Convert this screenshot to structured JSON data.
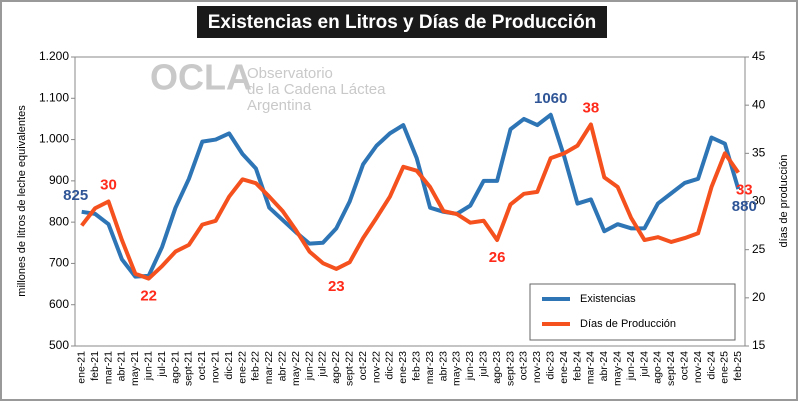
{
  "chart_data": {
    "type": "line",
    "title": "Existencias en Litros y Días de Producción",
    "ylabel": "millones de litros de leche equivalentes",
    "y2label": "días de producción",
    "watermark": [
      "OCLA",
      "Observatorio",
      "de la Cadena Láctea",
      "Argentina"
    ],
    "categories": [
      "ene-21",
      "feb-21",
      "mar-21",
      "abr-21",
      "may-21",
      "jun-21",
      "jul-21",
      "ago-21",
      "sept-21",
      "oct-21",
      "nov-21",
      "dic-21",
      "ene-22",
      "feb-22",
      "mar-22",
      "abr-22",
      "may-22",
      "jun-22",
      "jul-22",
      "ago-22",
      "sept-22",
      "oct-22",
      "nov-22",
      "dic-22",
      "ene-23",
      "feb-23",
      "mar-23",
      "abr-23",
      "may-23",
      "jun-23",
      "jul-23",
      "ago-23",
      "sept-23",
      "oct-23",
      "nov-23",
      "dic-23",
      "ene-24",
      "feb-24",
      "mar-24",
      "abr-24",
      "may-24",
      "jun-24",
      "jul-24",
      "ago-24",
      "sept-24",
      "oct-24",
      "nov-24",
      "dic-24",
      "ene-25",
      "feb-25"
    ],
    "series": [
      {
        "name": "Existencias",
        "color": "#2e75b6",
        "label_color": "#2f5597",
        "values": [
          825,
          820,
          795,
          710,
          668,
          670,
          740,
          835,
          905,
          995,
          1000,
          1015,
          965,
          930,
          835,
          805,
          775,
          748,
          750,
          785,
          850,
          940,
          985,
          1015,
          1035,
          955,
          835,
          825,
          820,
          840,
          900,
          900,
          1025,
          1050,
          1035,
          1060,
          960,
          845,
          855,
          778,
          795,
          785,
          785,
          845,
          870,
          895,
          905,
          1005,
          990,
          880
        ],
        "value_labels": [
          "825",
          null,
          null,
          null,
          null,
          null,
          null,
          null,
          null,
          null,
          null,
          null,
          null,
          null,
          null,
          null,
          null,
          null,
          null,
          null,
          null,
          null,
          null,
          null,
          null,
          null,
          null,
          null,
          null,
          null,
          null,
          null,
          null,
          null,
          null,
          "1060",
          null,
          null,
          null,
          null,
          null,
          null,
          null,
          null,
          null,
          null,
          null,
          null,
          null,
          "880"
        ]
      },
      {
        "name": "Días de Producción",
        "color": "#f4511e",
        "label_color": "#ff2a1a",
        "axis": "y2",
        "values": [
          27.5,
          29.3,
          30,
          26,
          22.5,
          22,
          23.3,
          24.8,
          25.5,
          27.6,
          28,
          30.5,
          32.3,
          31.9,
          30.5,
          29,
          27,
          24.8,
          23.6,
          23,
          23.7,
          26.2,
          28.3,
          30.5,
          33.6,
          33.2,
          31.5,
          29,
          28.7,
          27.8,
          28,
          26,
          29.7,
          30.8,
          31,
          34.5,
          35,
          35.8,
          38,
          32.5,
          31.5,
          28.3,
          26,
          26.3,
          25.8,
          26.2,
          26.7,
          31.5,
          35,
          33
        ],
        "value_labels": [
          null,
          null,
          "30",
          null,
          null,
          "22",
          null,
          null,
          null,
          null,
          null,
          null,
          null,
          null,
          null,
          null,
          null,
          null,
          null,
          "23",
          null,
          null,
          null,
          null,
          null,
          null,
          null,
          null,
          null,
          null,
          null,
          "26",
          null,
          null,
          null,
          null,
          null,
          null,
          "38",
          null,
          null,
          null,
          null,
          null,
          null,
          null,
          null,
          null,
          null,
          "33"
        ]
      }
    ],
    "ylim": [
      500,
      1200
    ],
    "yticks": [
      500,
      600,
      700,
      800,
      900,
      {
        "value": 1000,
        "label": "1.000"
      },
      {
        "value": 1100,
        "label": "1.100"
      },
      {
        "value": 1200,
        "label": "1.200"
      }
    ],
    "y2lim": [
      15,
      45
    ],
    "y2ticks": [
      15,
      20,
      25,
      30,
      35,
      40,
      45
    ],
    "legend": "lower right"
  }
}
